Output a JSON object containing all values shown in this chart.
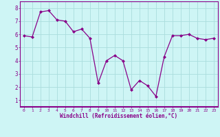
{
  "x": [
    0,
    1,
    2,
    3,
    4,
    5,
    6,
    7,
    8,
    9,
    10,
    11,
    12,
    13,
    14,
    15,
    16,
    17,
    18,
    19,
    20,
    21,
    22,
    23
  ],
  "y": [
    5.9,
    5.8,
    7.7,
    7.8,
    7.1,
    7.0,
    6.2,
    6.4,
    5.7,
    2.3,
    4.0,
    4.4,
    4.0,
    1.8,
    2.5,
    2.1,
    1.3,
    4.3,
    5.9,
    5.9,
    6.0,
    5.7,
    5.6,
    5.7
  ],
  "line_color": "#880088",
  "marker": "D",
  "marker_size": 2.0,
  "line_width": 0.9,
  "background_color": "#cef5f5",
  "grid_color": "#aadddd",
  "xlabel": "Windchill (Refroidissement éolien,°C)",
  "xlabel_color": "#880088",
  "tick_color": "#880088",
  "axis_bar_color": "#880088",
  "ylim": [
    0.5,
    8.5
  ],
  "xlim": [
    -0.5,
    23.5
  ],
  "yticks": [
    1,
    2,
    3,
    4,
    5,
    6,
    7,
    8
  ],
  "xticks": [
    0,
    1,
    2,
    3,
    4,
    5,
    6,
    7,
    8,
    9,
    10,
    11,
    12,
    13,
    14,
    15,
    16,
    17,
    18,
    19,
    20,
    21,
    22,
    23
  ],
  "xtick_labels": [
    "0",
    "1",
    "2",
    "3",
    "4",
    "5",
    "6",
    "7",
    "8",
    "9",
    "10",
    "11",
    "12",
    "13",
    "14",
    "15",
    "16",
    "17",
    "18",
    "19",
    "20",
    "21",
    "22",
    "23"
  ]
}
